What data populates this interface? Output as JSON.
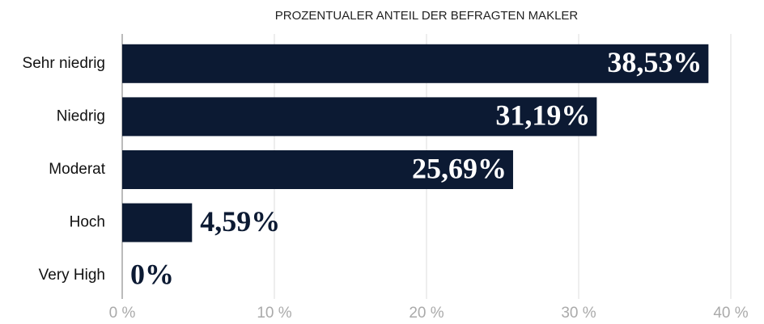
{
  "chart_data": {
    "type": "bar",
    "orientation": "horizontal",
    "title": "PROZENTUALER ANTEIL DER BEFRAGTEN MAKLER",
    "categories": [
      "Sehr niedrig",
      "Niedrig",
      "Moderat",
      "Hoch",
      "Very High"
    ],
    "values": [
      38.53,
      31.19,
      25.69,
      4.59,
      0
    ],
    "value_labels": [
      "38,53%",
      "31,19%",
      "25,69%",
      "4,59%",
      "0%"
    ],
    "color": "#0c1a33",
    "xlim": [
      0,
      40
    ],
    "xticks": [
      {
        "value": 0,
        "label": "0 %"
      },
      {
        "value": 10,
        "label": "10 %"
      },
      {
        "value": 20,
        "label": "20 %"
      },
      {
        "value": 30,
        "label": "30 %"
      },
      {
        "value": 40,
        "label": "40 %"
      }
    ],
    "grid": true
  }
}
